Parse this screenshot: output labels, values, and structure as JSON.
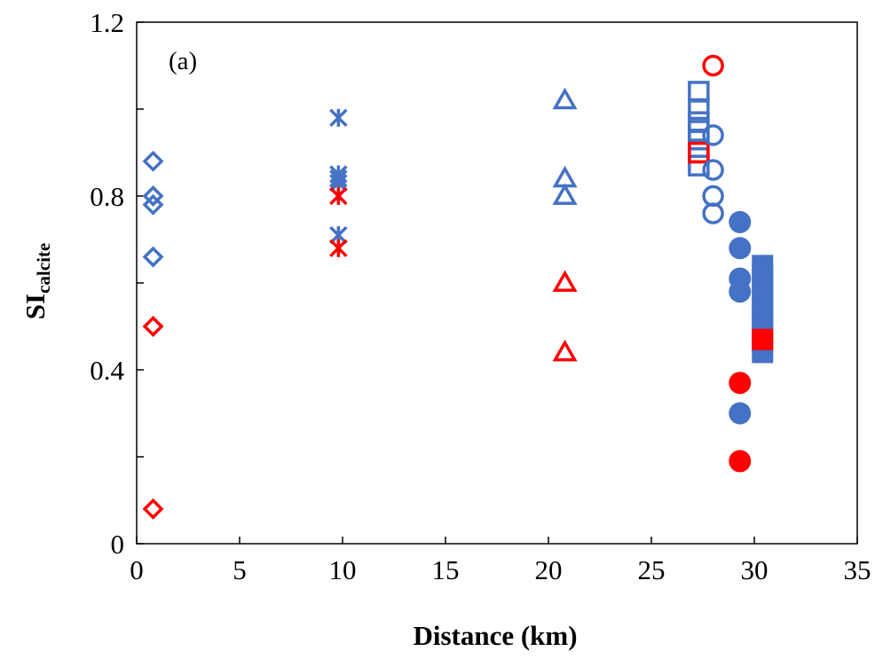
{
  "chart_data": {
    "type": "scatter",
    "annotation": "(a)",
    "xlabel": "Distance (km)",
    "ylabel_main": "SI",
    "ylabel_sub": "calcite",
    "xlim": [
      0,
      35
    ],
    "ylim": [
      0,
      1.2
    ],
    "x_ticks": [
      0,
      5,
      10,
      15,
      20,
      25,
      30,
      35
    ],
    "x_tick_labels": [
      "0",
      "5",
      "10",
      "15",
      "20",
      "25",
      "30",
      "35"
    ],
    "y_ticks": [
      0,
      0.2,
      0.4,
      0.6,
      0.8,
      1.0,
      1.2
    ],
    "y_tick_labels": [
      "0",
      "",
      "0.4",
      "",
      "0.8",
      "",
      "1.2"
    ],
    "grid": false,
    "legend": "none",
    "colors": {
      "blue": "#4472C4",
      "red": "#FF0000"
    },
    "series": [
      {
        "marker": "diamond-open",
        "color": "blue",
        "points": [
          [
            0.8,
            0.88
          ],
          [
            0.8,
            0.8
          ],
          [
            0.8,
            0.78
          ],
          [
            0.8,
            0.66
          ]
        ]
      },
      {
        "marker": "diamond-open",
        "color": "red",
        "points": [
          [
            0.8,
            0.5
          ],
          [
            0.8,
            0.08
          ]
        ]
      },
      {
        "marker": "asterisk",
        "color": "blue",
        "points": [
          [
            9.8,
            0.98
          ],
          [
            9.8,
            0.85
          ],
          [
            9.8,
            0.84
          ],
          [
            9.8,
            0.83
          ],
          [
            9.8,
            0.71
          ]
        ]
      },
      {
        "marker": "asterisk",
        "color": "red",
        "points": [
          [
            9.8,
            0.8
          ],
          [
            9.8,
            0.68
          ]
        ]
      },
      {
        "marker": "triangle-open",
        "color": "blue",
        "points": [
          [
            20.8,
            1.02
          ],
          [
            20.8,
            0.84
          ],
          [
            20.8,
            0.8
          ]
        ]
      },
      {
        "marker": "triangle-open",
        "color": "red",
        "points": [
          [
            20.8,
            0.6
          ],
          [
            20.8,
            0.44
          ]
        ]
      },
      {
        "marker": "square-open",
        "color": "blue",
        "points": [
          [
            27.3,
            1.04
          ],
          [
            27.3,
            1.0
          ],
          [
            27.3,
            0.97
          ],
          [
            27.3,
            0.95
          ],
          [
            27.3,
            0.93
          ],
          [
            27.3,
            0.9
          ],
          [
            27.3,
            0.87
          ]
        ]
      },
      {
        "marker": "square-open",
        "color": "red",
        "points": [
          [
            27.3,
            0.9
          ]
        ]
      },
      {
        "marker": "circle-open",
        "color": "blue",
        "points": [
          [
            28.0,
            0.94
          ],
          [
            28.0,
            0.86
          ],
          [
            28.0,
            0.8
          ],
          [
            28.0,
            0.76
          ]
        ]
      },
      {
        "marker": "circle-open",
        "color": "red",
        "points": [
          [
            28.0,
            1.1
          ]
        ]
      },
      {
        "marker": "circle-filled",
        "color": "blue",
        "points": [
          [
            29.3,
            0.74
          ],
          [
            29.3,
            0.68
          ],
          [
            29.3,
            0.61
          ],
          [
            29.3,
            0.58
          ],
          [
            29.3,
            0.3
          ]
        ]
      },
      {
        "marker": "circle-filled",
        "color": "red",
        "points": [
          [
            29.3,
            0.37
          ],
          [
            29.3,
            0.19
          ]
        ]
      },
      {
        "marker": "square-filled",
        "color": "blue",
        "points": [
          [
            30.4,
            0.64
          ],
          [
            30.4,
            0.62
          ],
          [
            30.4,
            0.6
          ],
          [
            30.4,
            0.58
          ],
          [
            30.4,
            0.56
          ],
          [
            30.4,
            0.54
          ],
          [
            30.4,
            0.52
          ],
          [
            30.4,
            0.5
          ],
          [
            30.4,
            0.48
          ],
          [
            30.4,
            0.46
          ],
          [
            30.4,
            0.44
          ]
        ]
      },
      {
        "marker": "square-filled",
        "color": "red",
        "points": [
          [
            30.4,
            0.47
          ]
        ]
      }
    ]
  }
}
